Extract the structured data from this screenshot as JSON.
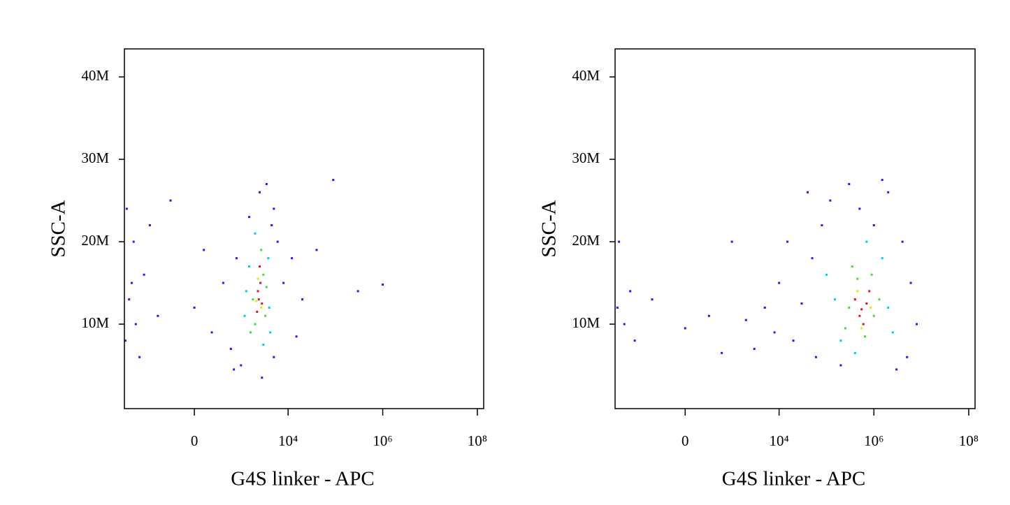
{
  "chart_data": [
    {
      "type": "scatter",
      "xlabel": "G4S linker - APC",
      "ylabel": "SSC-A",
      "xscale": "biexponential",
      "xlim": [
        -3140,
        136000000
      ],
      "ylim": [
        -250000,
        43400000
      ],
      "xticks": [
        0,
        {
          "value": 10000,
          "label": "10⁴"
        },
        {
          "value": 1000000,
          "label": "10⁶"
        },
        {
          "value": 100000000,
          "label": "10⁸"
        }
      ],
      "yticks": [
        {
          "value": 10000000,
          "label": "10M"
        },
        {
          "value": 20000000,
          "label": "20M"
        },
        {
          "value": 30000000,
          "label": "30M"
        },
        {
          "value": 40000000,
          "label": "40M"
        }
      ],
      "series": [
        {
          "color": "#1a1aff",
          "x": [
            -2500,
            -1800,
            -3000,
            -1200,
            -600,
            -2000,
            -2800,
            -900,
            0,
            200,
            400,
            600,
            800,
            1000,
            1500,
            2500,
            3500,
            5000,
            6000,
            8000,
            12000,
            20000,
            40000,
            90000,
            300000,
            1000000,
            -1500,
            -300,
            700,
            2800,
            5000,
            15000,
            -2200,
            100,
            4500
          ],
          "values": [
            13000000,
            10000000,
            8000000,
            16000000,
            11000000,
            20000000,
            24000000,
            22000000,
            12000000,
            9000000,
            15000000,
            7000000,
            18000000,
            5000000,
            23000000,
            26000000,
            27000000,
            24000000,
            20000000,
            15000000,
            18000000,
            13000000,
            19000000,
            27500000,
            14000000,
            14800000,
            6000000,
            25000000,
            4500000,
            3500000,
            6000000,
            8500000,
            15000000,
            19000000,
            22000000
          ]
        },
        {
          "color": "#00c8ff",
          "x": [
            1500,
            4000,
            1200,
            2000,
            4200,
            3000,
            3800,
            1300
          ],
          "values": [
            17000000,
            12000000,
            11000000,
            21000000,
            9000000,
            7500000,
            18000000,
            14000000
          ]
        },
        {
          "color": "#3ce03c",
          "x": [
            2000,
            3000,
            1800,
            3300,
            2700,
            1600,
            3500
          ],
          "values": [
            10000000,
            16000000,
            13000000,
            11000000,
            19000000,
            9000000,
            14500000
          ]
        },
        {
          "color": "#e8e800",
          "x": [
            2300,
            2700,
            2100
          ],
          "values": [
            15500000,
            12000000,
            12800000
          ]
        },
        {
          "color": "#e8101c",
          "x": [
            2400,
            2600,
            2200,
            2800,
            2500,
            2300
          ],
          "values": [
            13000000,
            15000000,
            11500000,
            12500000,
            17000000,
            14000000
          ]
        }
      ]
    },
    {
      "type": "scatter",
      "xlabel": "G4S linker - APC",
      "ylabel": "SSC-A",
      "xscale": "biexponential",
      "xlim": [
        -3140,
        136000000
      ],
      "ylim": [
        -250000,
        43400000
      ],
      "xticks": [
        0,
        {
          "value": 10000,
          "label": "10⁴"
        },
        {
          "value": 1000000,
          "label": "10⁶"
        },
        {
          "value": 100000000,
          "label": "10⁸"
        }
      ],
      "yticks": [
        {
          "value": 10000000,
          "label": "10M"
        },
        {
          "value": 20000000,
          "label": "20M"
        },
        {
          "value": 30000000,
          "label": "30M"
        },
        {
          "value": 40000000,
          "label": "40M"
        }
      ],
      "series": [
        {
          "color": "#1a1aff",
          "x": [
            -2800,
            -2000,
            -1200,
            -500,
            0,
            300,
            1000,
            2000,
            3000,
            5000,
            8000,
            10000,
            15000,
            20000,
            30000,
            50000,
            60000,
            80000,
            120000,
            200000,
            300000,
            500000,
            1000000,
            2000000,
            4000000,
            6000000,
            8000000,
            5000000,
            3000000,
            1500000,
            40000,
            -2600,
            -1500,
            600
          ],
          "values": [
            12000000,
            10000000,
            8000000,
            13000000,
            9500000,
            11000000,
            20000000,
            10500000,
            7000000,
            12000000,
            9000000,
            15000000,
            20000000,
            8000000,
            12500000,
            18000000,
            6000000,
            22000000,
            25000000,
            5000000,
            27000000,
            24000000,
            22000000,
            26000000,
            20000000,
            15000000,
            10000000,
            6000000,
            4500000,
            27500000,
            26000000,
            20000000,
            14000000,
            6500000
          ]
        },
        {
          "color": "#00c8ff",
          "x": [
            150000,
            2000000,
            200000,
            1500000,
            700000,
            100000,
            2500000,
            400000
          ],
          "values": [
            13000000,
            12000000,
            8000000,
            18000000,
            20000000,
            16000000,
            9000000,
            6500000
          ]
        },
        {
          "color": "#3ce03c",
          "x": [
            300000,
            1000000,
            450000,
            900000,
            250000,
            1300000,
            650000,
            350000
          ],
          "values": [
            12000000,
            11000000,
            15500000,
            16000000,
            9500000,
            13000000,
            8500000,
            17000000
          ]
        },
        {
          "color": "#e8e800",
          "x": [
            450000,
            850000,
            550000
          ],
          "values": [
            14000000,
            12000000,
            9500000
          ]
        },
        {
          "color": "#e8101c",
          "x": [
            500000,
            700000,
            400000,
            600000,
            800000,
            550000
          ],
          "values": [
            11000000,
            12500000,
            13000000,
            10000000,
            14000000,
            11800000
          ]
        }
      ]
    }
  ]
}
